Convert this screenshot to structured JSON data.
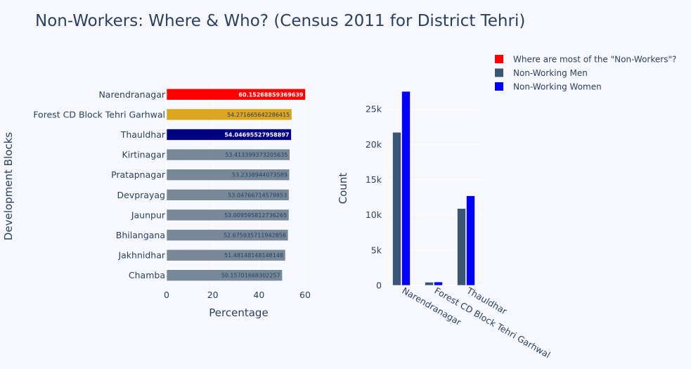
{
  "title": "Non-Workers: Where & Who? (Census 2011 for District Tehri)",
  "chart_data": [
    {
      "type": "bar",
      "orientation": "horizontal",
      "xlabel": "Percentage",
      "ylabel": "Development Blocks",
      "xlim": [
        0,
        60
      ],
      "xticks": [
        "0",
        "20",
        "40",
        "60"
      ],
      "grid": true,
      "categories": [
        "Narendranagar",
        "Forest CD Block Tehri Garhwal",
        "Thauldhar",
        "Kirtinagar",
        "Pratapnagar",
        "Devprayag",
        "Jaunpur",
        "Bhilangana",
        "Jakhnidhar",
        "Chamba"
      ],
      "values": [
        60.15268859369639,
        54.271665642286415,
        54.04695527958897,
        53.413399373205635,
        53.2338944073589,
        53.04766714579853,
        53.009595812736265,
        52.675935711942856,
        51.48148148148148,
        50.15701668302257
      ],
      "data_labels": [
        "60.15268859369639",
        "54.271665642286415",
        "54.04695527958897",
        "53.413399373205635",
        "53.2338944073589",
        "53.04766714579853",
        "53.009595812736265",
        "52.675935711942856",
        "51.48148148148148",
        "50.15701668302257"
      ],
      "colors": [
        "#ff0000",
        "#daa520",
        "#000080",
        "#778899",
        "#778899",
        "#778899",
        "#778899",
        "#778899",
        "#778899",
        "#778899"
      ],
      "label_colors": [
        "#ffffff",
        "#2a3f5f",
        "#ffffff",
        "#2a3f5f",
        "#2a3f5f",
        "#2a3f5f",
        "#2a3f5f",
        "#2a3f5f",
        "#2a3f5f",
        "#2a3f5f"
      ]
    },
    {
      "type": "bar",
      "orientation": "vertical",
      "ylabel": "Count",
      "ylim": [
        0,
        28500
      ],
      "yticks": [
        {
          "value": 0,
          "label": "0"
        },
        {
          "value": 5000,
          "label": "5k"
        },
        {
          "value": 10000,
          "label": "10k"
        },
        {
          "value": 15000,
          "label": "15k"
        },
        {
          "value": 20000,
          "label": "20k"
        },
        {
          "value": 25000,
          "label": "25k"
        }
      ],
      "grid": true,
      "categories": [
        "Narendranagar",
        "Forest CD Block Tehri Garhwal",
        "Thauldhar"
      ],
      "series": [
        {
          "name": "Non-Working Men",
          "color": "#3b5574",
          "values": [
            21700,
            450,
            10900
          ]
        },
        {
          "name": "Non-Working Women",
          "color": "#0000ff",
          "values": [
            27500,
            480,
            12700
          ]
        }
      ]
    }
  ],
  "legend": {
    "placement": "top-right",
    "entries": [
      {
        "label": "Where are most of the \"Non-Workers\"?",
        "color": "#ff0000"
      },
      {
        "label": "Non-Working Men",
        "color": "#3b5574"
      },
      {
        "label": "Non-Working Women",
        "color": "#0000ff"
      }
    ]
  }
}
